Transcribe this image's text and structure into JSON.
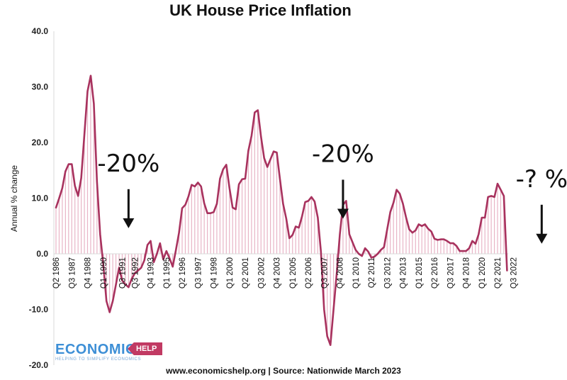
{
  "chart_data": {
    "type": "area",
    "title": "UK House Price Inflation",
    "ylabel": "Annual % change",
    "xlabel": "",
    "ylim": [
      -20,
      40
    ],
    "yticks": [
      "40.0",
      "30.0",
      "20.0",
      "10.0",
      "0.0",
      "-10.0",
      "-20.0"
    ],
    "ytick_values": [
      40,
      30,
      20,
      10,
      0,
      -10,
      -20
    ],
    "xtick_labels": [
      {
        "label": "Q2 1986",
        "q": 0
      },
      {
        "label": "Q3 1987",
        "q": 5
      },
      {
        "label": "Q4 1988",
        "q": 10
      },
      {
        "label": "Q1 1990",
        "q": 15
      },
      {
        "label": "Q3 1991",
        "q": 21
      },
      {
        "label": "Q3 1992",
        "q": 25
      },
      {
        "label": "Q4 1993",
        "q": 30
      },
      {
        "label": "Q1 1995",
        "q": 35
      },
      {
        "label": "Q2 1996",
        "q": 40
      },
      {
        "label": "Q3 1997",
        "q": 45
      },
      {
        "label": "Q4 1998",
        "q": 50
      },
      {
        "label": "Q1 2000",
        "q": 55
      },
      {
        "label": "Q2 2001",
        "q": 60
      },
      {
        "label": "Q3 2002",
        "q": 65
      },
      {
        "label": "Q4 2003",
        "q": 70
      },
      {
        "label": "Q1 2005",
        "q": 75
      },
      {
        "label": "Q2 2006",
        "q": 80
      },
      {
        "label": "Q3 2007",
        "q": 85
      },
      {
        "label": "Q4 2008",
        "q": 90
      },
      {
        "label": "Q1 2010",
        "q": 95
      },
      {
        "label": "Q2 2011",
        "q": 100
      },
      {
        "label": "Q3 2012",
        "q": 105
      },
      {
        "label": "Q4 2013",
        "q": 110
      },
      {
        "label": "Q1 2015",
        "q": 115
      },
      {
        "label": "Q2 2016",
        "q": 120
      },
      {
        "label": "Q3 2017",
        "q": 125
      },
      {
        "label": "Q4 2018",
        "q": 130
      },
      {
        "label": "Q1 2020",
        "q": 135
      },
      {
        "label": "Q2 2021",
        "q": 140
      },
      {
        "label": "Q3 2022",
        "q": 145
      }
    ],
    "series": [
      {
        "x_start": "Q2 1986",
        "values": [
          8.3,
          10.0,
          11.8,
          14.8,
          16.1,
          16.1,
          12.2,
          10.4,
          13.6,
          21.5,
          29.2,
          32.0,
          27.0,
          13.0,
          3.5,
          -2.0,
          -8.5,
          -10.5,
          -8.5,
          -5.5,
          -2.5,
          -4.8,
          -5.5,
          -6.0,
          -4.5,
          -3.5,
          -3.0,
          -2.5,
          -1.2,
          1.6,
          2.3,
          -1.5,
          0.0,
          1.9,
          -1.0,
          0.5,
          -0.8,
          -2.3,
          0.6,
          3.8,
          8.2,
          8.8,
          10.3,
          12.4,
          12.1,
          12.8,
          12.1,
          9.1,
          7.3,
          7.3,
          7.5,
          9.0,
          13.5,
          15.2,
          16.0,
          11.8,
          8.3,
          8.0,
          12.5,
          13.4,
          13.5,
          18.5,
          21.2,
          25.4,
          25.8,
          21.0,
          17.2,
          15.6,
          17.0,
          18.4,
          18.2,
          13.5,
          9.0,
          6.3,
          2.8,
          3.4,
          4.9,
          4.7,
          6.7,
          9.3,
          9.5,
          10.2,
          9.4,
          6.5,
          0.4,
          -10.0,
          -14.8,
          -16.4,
          -10.0,
          -3.5,
          3.5,
          8.8,
          9.5,
          3.5,
          2.1,
          0.7,
          0.0,
          -0.4,
          1.0,
          0.4,
          -0.7,
          -0.5,
          0.0,
          0.7,
          1.2,
          4.4,
          7.5,
          9.2,
          11.5,
          10.8,
          9.0,
          6.5,
          4.4,
          3.8,
          4.2,
          5.3,
          5.0,
          5.3,
          4.5,
          4.0,
          2.7,
          2.5,
          2.6,
          2.6,
          2.3,
          1.9,
          1.9,
          1.4,
          0.5,
          0.5,
          0.5,
          1.0,
          2.3,
          1.8,
          3.5,
          6.5,
          6.5,
          10.2,
          10.4,
          10.2,
          12.6,
          11.5,
          10.4,
          -3.0
        ]
      }
    ],
    "annotations": [
      {
        "text": "-20%",
        "q": 23,
        "y": 14.8
      },
      {
        "text": "-20%",
        "q": 91,
        "y": 16.5
      },
      {
        "text": "-? %",
        "q": 154,
        "y": 12.0
      }
    ],
    "colors": {
      "line": "#a8325e",
      "fill": "#e8b4c6",
      "axis": "#d9d9d9",
      "arrow": "#111111"
    },
    "grid": false,
    "legend": "none"
  },
  "logo": {
    "main": "ECONOMICS",
    "tag": "HELP",
    "sub": "HELPING TO SIMPLIFY ECONOMICS"
  },
  "footer": {
    "source": "www.economicshelp.org | Source: Nationwide March 2023"
  }
}
